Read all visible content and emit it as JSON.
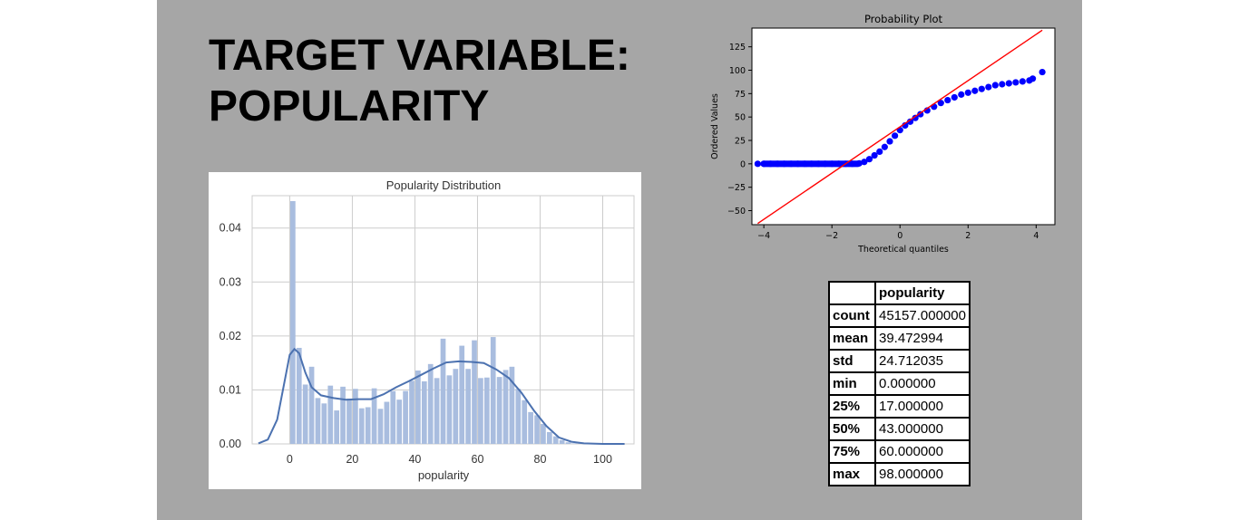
{
  "slide": {
    "title_lines": [
      "TARGET VARIABLE:",
      "POPULARITY"
    ]
  },
  "colors": {
    "slide_background": "#a6a6a6",
    "hist_bar": "#a9bddf",
    "kde_line": "#4c72b0",
    "prob_points": "#0000ff",
    "prob_line": "#ff0000"
  },
  "chart_data": [
    {
      "type": "bar",
      "title": "Popularity Distribution",
      "xlabel": "popularity",
      "ylabel": "",
      "xlim": [
        -12,
        110
      ],
      "ylim": [
        0,
        0.046
      ],
      "xticks": [
        0,
        20,
        40,
        60,
        80,
        100
      ],
      "yticks": [
        0.0,
        0.01,
        0.02,
        0.03,
        0.04
      ],
      "ytick_labels": [
        "0.00",
        "0.01",
        "0.02",
        "0.03",
        "0.04"
      ],
      "grid": true,
      "bin_width": 2,
      "bin_starts": [
        0,
        2,
        4,
        6,
        8,
        10,
        12,
        14,
        16,
        18,
        20,
        22,
        24,
        26,
        28,
        30,
        32,
        34,
        36,
        38,
        40,
        42,
        44,
        46,
        48,
        50,
        52,
        54,
        56,
        58,
        60,
        62,
        64,
        66,
        68,
        70,
        72,
        74,
        76,
        78,
        80,
        82,
        84,
        86,
        88,
        90,
        92,
        94
      ],
      "values": [
        0.045,
        0.0178,
        0.011,
        0.0143,
        0.0085,
        0.0075,
        0.0108,
        0.0062,
        0.0106,
        0.0084,
        0.0102,
        0.0066,
        0.0068,
        0.0103,
        0.0065,
        0.0078,
        0.0098,
        0.0082,
        0.0098,
        0.0117,
        0.0136,
        0.0116,
        0.0148,
        0.0122,
        0.0195,
        0.0127,
        0.0139,
        0.0182,
        0.0139,
        0.0192,
        0.0122,
        0.0123,
        0.0198,
        0.0124,
        0.0137,
        0.0143,
        0.0102,
        0.0081,
        0.0059,
        0.0053,
        0.0037,
        0.0022,
        0.0014,
        0.0007,
        0.0003,
        0.0001,
        0.0001,
        0.0001
      ],
      "kde": {
        "x": [
          -10,
          -7,
          -4,
          -2,
          0,
          1.5,
          3,
          5,
          7,
          10,
          14,
          18,
          22,
          26,
          30,
          34,
          38,
          42,
          46,
          50,
          54,
          58,
          62,
          66,
          70,
          74,
          78,
          82,
          86,
          90,
          94,
          100,
          107
        ],
        "y": [
          0.0001,
          0.0008,
          0.0045,
          0.0105,
          0.0165,
          0.0176,
          0.0168,
          0.0132,
          0.0105,
          0.009,
          0.0085,
          0.0082,
          0.0083,
          0.0083,
          0.0092,
          0.0105,
          0.0116,
          0.0128,
          0.014,
          0.0151,
          0.0153,
          0.0152,
          0.015,
          0.0138,
          0.0122,
          0.0095,
          0.0062,
          0.0033,
          0.0012,
          0.0004,
          0.0001,
          0.0,
          0.0
        ]
      }
    },
    {
      "type": "scatter",
      "title": "Probability Plot",
      "xlabel": "Theoretical quantiles",
      "ylabel": "Ordered Values",
      "xlim": [
        -4.35,
        4.55
      ],
      "ylim": [
        -65,
        145
      ],
      "xticks": [
        -4,
        -2,
        0,
        2,
        4
      ],
      "xtick_labels": [
        "−4",
        "−2",
        "0",
        "2",
        "4"
      ],
      "yticks": [
        -50,
        -25,
        0,
        25,
        50,
        75,
        100,
        125
      ],
      "ytick_labels": [
        "−50",
        "−25",
        "0",
        "25",
        "50",
        "75",
        "100",
        "125"
      ],
      "grid": false,
      "fit_line": {
        "slope": 24.7,
        "intercept": 39.5,
        "x_range": [
          -4.18,
          4.18
        ]
      },
      "points_x": [
        -4.18,
        -4.0,
        -3.8,
        -3.6,
        -3.4,
        -3.2,
        -3.0,
        -2.8,
        -2.6,
        -2.4,
        -2.2,
        -2.0,
        -1.8,
        -1.6,
        -1.4,
        -1.2,
        -1.05,
        -0.9,
        -0.75,
        -0.6,
        -0.45,
        -0.3,
        -0.15,
        0.0,
        0.15,
        0.3,
        0.45,
        0.6,
        0.8,
        1.0,
        1.2,
        1.4,
        1.6,
        1.8,
        2.0,
        2.2,
        2.4,
        2.6,
        2.8,
        3.0,
        3.2,
        3.4,
        3.6,
        3.8,
        3.9,
        4.18
      ],
      "points_y": [
        0,
        0,
        0,
        0,
        0,
        0,
        0,
        0,
        0,
        0,
        0,
        0,
        0,
        0,
        0,
        0.5,
        2,
        5,
        9,
        13,
        18,
        24,
        30,
        36,
        41,
        45,
        49,
        53,
        57,
        61,
        65,
        68,
        71,
        74,
        76,
        78,
        80,
        82,
        84,
        85,
        86,
        87,
        88,
        89,
        91,
        98
      ],
      "marker_color": "#0000ff",
      "line_color": "#ff0000"
    }
  ],
  "stats_table": {
    "header": [
      "",
      "popularity"
    ],
    "rows": [
      [
        "count",
        "45157.000000"
      ],
      [
        "mean",
        "39.472994"
      ],
      [
        "std",
        "24.712035"
      ],
      [
        "min",
        "0.000000"
      ],
      [
        "25%",
        "17.000000"
      ],
      [
        "50%",
        "43.000000"
      ],
      [
        "75%",
        "60.000000"
      ],
      [
        "max",
        "98.000000"
      ]
    ]
  }
}
